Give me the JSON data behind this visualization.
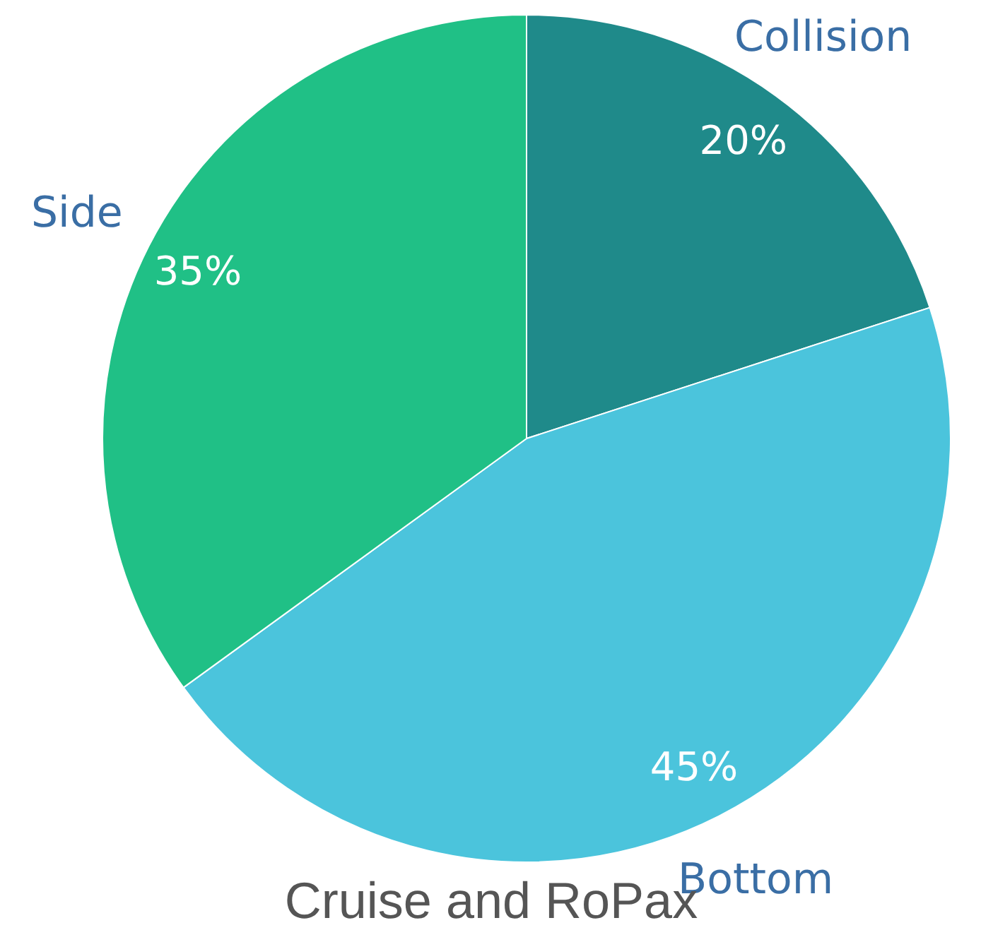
{
  "chart_data": {
    "type": "pie",
    "title": "Cruise and RoPax",
    "categories": [
      "Collision",
      "Bottom",
      "Side"
    ],
    "values": [
      20,
      45,
      35
    ],
    "value_labels": [
      "20%",
      "45%",
      "35%"
    ],
    "colors": [
      "#1f8a8a",
      "#4bc4dc",
      "#20c086"
    ]
  }
}
